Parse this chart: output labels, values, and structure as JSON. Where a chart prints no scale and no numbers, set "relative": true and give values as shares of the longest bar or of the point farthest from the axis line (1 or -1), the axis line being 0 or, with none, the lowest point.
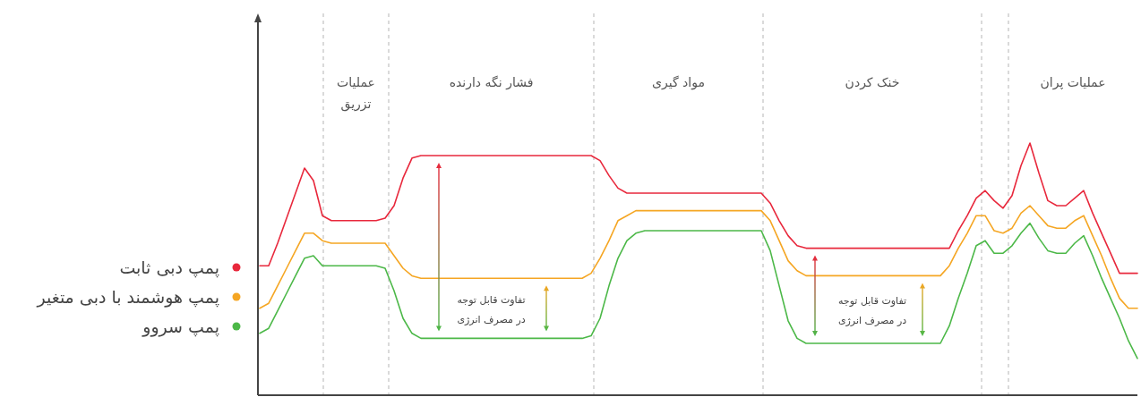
{
  "chart_data": {
    "type": "line",
    "relative": true,
    "legend": "left",
    "categories": [
      null,
      null,
      null,
      null,
      null,
      null,
      null,
      null,
      null,
      null,
      null,
      null,
      null,
      null,
      null,
      null,
      null,
      null,
      null,
      null,
      null,
      null,
      null,
      null,
      null,
      null,
      null,
      null,
      null,
      null,
      null,
      null,
      null,
      null,
      null,
      null,
      null,
      null,
      null,
      null,
      null,
      null,
      null,
      null,
      null,
      null,
      null,
      null,
      null,
      null,
      null,
      null,
      null,
      null,
      null,
      null,
      null,
      null,
      null,
      null,
      null,
      null,
      null,
      null,
      null,
      null,
      null,
      null,
      null,
      null,
      null,
      null,
      null,
      null,
      null,
      null,
      null,
      null,
      null,
      null,
      null,
      null,
      null,
      null,
      null,
      null,
      null,
      null,
      null,
      null,
      null,
      null,
      null,
      null,
      null,
      null,
      null,
      null,
      null
    ],
    "series": [
      {
        "name": "پمپ دبی ثابت",
        "color": "#e8283c",
        "values": [
          0.51,
          0.51,
          0.6,
          0.7,
          0.8,
          0.9,
          0.85,
          0.71,
          0.69,
          0.69,
          0.69,
          0.69,
          0.69,
          0.69,
          0.7,
          0.75,
          0.86,
          0.94,
          0.95,
          0.95,
          0.95,
          0.95,
          0.95,
          0.95,
          0.95,
          0.95,
          0.95,
          0.95,
          0.95,
          0.95,
          0.95,
          0.95,
          0.95,
          0.95,
          0.95,
          0.95,
          0.95,
          0.95,
          0.93,
          0.87,
          0.82,
          0.8,
          0.8,
          0.8,
          0.8,
          0.8,
          0.8,
          0.8,
          0.8,
          0.8,
          0.8,
          0.8,
          0.8,
          0.8,
          0.8,
          0.8,
          0.8,
          0.76,
          0.69,
          0.63,
          0.59,
          0.58,
          0.58,
          0.58,
          0.58,
          0.58,
          0.58,
          0.58,
          0.58,
          0.58,
          0.58,
          0.58,
          0.58,
          0.58,
          0.58,
          0.58,
          0.58,
          0.58,
          0.65,
          0.71,
          0.78,
          0.81,
          0.77,
          0.74,
          0.79,
          0.91,
          1.0,
          0.88,
          0.77,
          0.75,
          0.75,
          0.78,
          0.81,
          0.72,
          0.64,
          0.56,
          0.48,
          0.48,
          0.48
        ]
      },
      {
        "name": "پمپ هوشمند با دبی متغیر",
        "color": "#f5a623",
        "values": [
          0.34,
          0.36,
          0.43,
          0.5,
          0.57,
          0.64,
          0.64,
          0.61,
          0.6,
          0.6,
          0.6,
          0.6,
          0.6,
          0.6,
          0.6,
          0.55,
          0.5,
          0.47,
          0.46,
          0.46,
          0.46,
          0.46,
          0.46,
          0.46,
          0.46,
          0.46,
          0.46,
          0.46,
          0.46,
          0.46,
          0.46,
          0.46,
          0.46,
          0.46,
          0.46,
          0.46,
          0.46,
          0.48,
          0.54,
          0.61,
          0.69,
          0.71,
          0.73,
          0.73,
          0.73,
          0.73,
          0.73,
          0.73,
          0.73,
          0.73,
          0.73,
          0.73,
          0.73,
          0.73,
          0.73,
          0.73,
          0.73,
          0.69,
          0.61,
          0.53,
          0.49,
          0.47,
          0.47,
          0.47,
          0.47,
          0.47,
          0.47,
          0.47,
          0.47,
          0.47,
          0.47,
          0.47,
          0.47,
          0.47,
          0.47,
          0.47,
          0.47,
          0.51,
          0.58,
          0.64,
          0.71,
          0.71,
          0.65,
          0.64,
          0.66,
          0.72,
          0.75,
          0.71,
          0.67,
          0.66,
          0.66,
          0.69,
          0.71,
          0.63,
          0.55,
          0.46,
          0.38,
          0.34,
          0.34
        ]
      },
      {
        "name": "پمپ سروو",
        "color": "#4cb848",
        "values": [
          0.24,
          0.26,
          0.33,
          0.4,
          0.47,
          0.54,
          0.55,
          0.51,
          0.51,
          0.51,
          0.51,
          0.51,
          0.51,
          0.51,
          0.5,
          0.41,
          0.3,
          0.24,
          0.22,
          0.22,
          0.22,
          0.22,
          0.22,
          0.22,
          0.22,
          0.22,
          0.22,
          0.22,
          0.22,
          0.22,
          0.22,
          0.22,
          0.22,
          0.22,
          0.22,
          0.22,
          0.22,
          0.23,
          0.3,
          0.43,
          0.54,
          0.61,
          0.64,
          0.65,
          0.65,
          0.65,
          0.65,
          0.65,
          0.65,
          0.65,
          0.65,
          0.65,
          0.65,
          0.65,
          0.65,
          0.65,
          0.65,
          0.57,
          0.43,
          0.29,
          0.22,
          0.2,
          0.2,
          0.2,
          0.2,
          0.2,
          0.2,
          0.2,
          0.2,
          0.2,
          0.2,
          0.2,
          0.2,
          0.2,
          0.2,
          0.2,
          0.2,
          0.27,
          0.38,
          0.48,
          0.59,
          0.61,
          0.56,
          0.56,
          0.59,
          0.64,
          0.68,
          0.62,
          0.57,
          0.56,
          0.56,
          0.6,
          0.63,
          0.55,
          0.46,
          0.38,
          0.3,
          0.21,
          0.14
        ]
      }
    ],
    "annotations": [
      "عملیات\nتزریق",
      "فشار نگه دارنده",
      "مواد گیری",
      "خنک کردن",
      "عملیات پران",
      "تفاوت قابل توجه\nدر مصرف انرژی",
      "تفاوت قابل توجه\nدر مصرف انرژی"
    ]
  }
}
